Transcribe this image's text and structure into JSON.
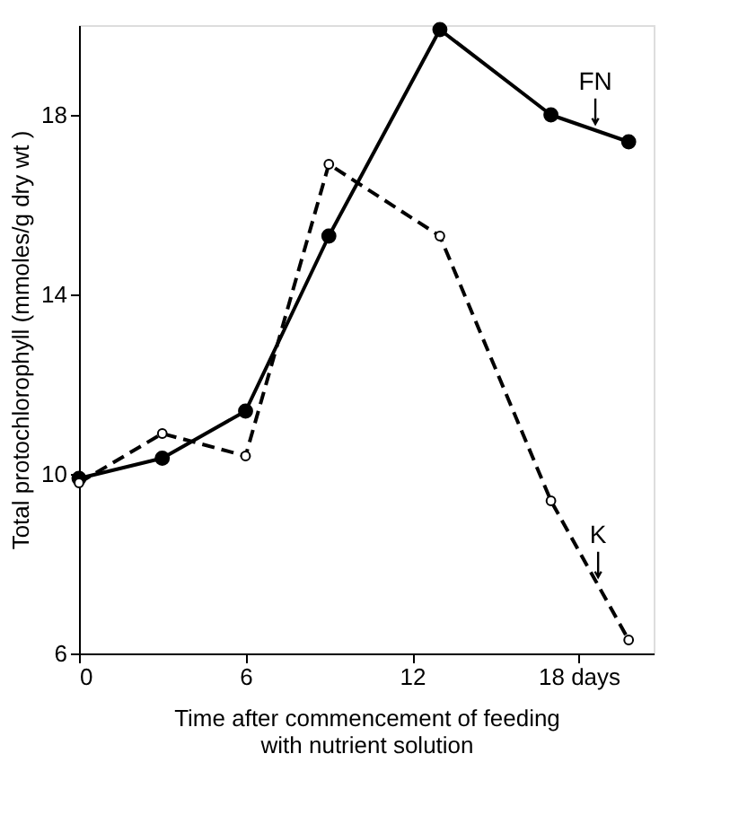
{
  "chart_data": {
    "type": "line",
    "xlabel": "Time after commencement of feeding\nwith nutrient solution",
    "ylabel": "Total protochlorophyll (mmoles/g dry wt )",
    "xlim": [
      0,
      20.7
    ],
    "ylim": [
      6,
      20
    ],
    "xticks": [
      0,
      6,
      12,
      {
        "value": 18,
        "label": "18 days"
      }
    ],
    "yticks": [
      6,
      10,
      14,
      18
    ],
    "grid": false,
    "legend": false,
    "marker": "circle",
    "series": [
      {
        "color": "#000000",
        "line_style": "solid",
        "x": [
          0,
          3,
          6,
          9,
          13,
          17,
          19.8
        ],
        "values": [
          9.9,
          10.35,
          11.4,
          15.3,
          19.9,
          18.0,
          17.4
        ]
      },
      {
        "color": "#000000",
        "line_style": "dashed",
        "x": [
          0,
          3,
          6,
          9,
          13,
          17,
          19.8
        ],
        "values": [
          9.8,
          10.9,
          10.4,
          16.9,
          15.3,
          9.4,
          6.3
        ]
      }
    ],
    "annotations": [
      {
        "text": "FN",
        "x": 18.6,
        "y": 17.8
      },
      {
        "text": "K",
        "x": 18.7,
        "y": 7.7
      }
    ]
  }
}
